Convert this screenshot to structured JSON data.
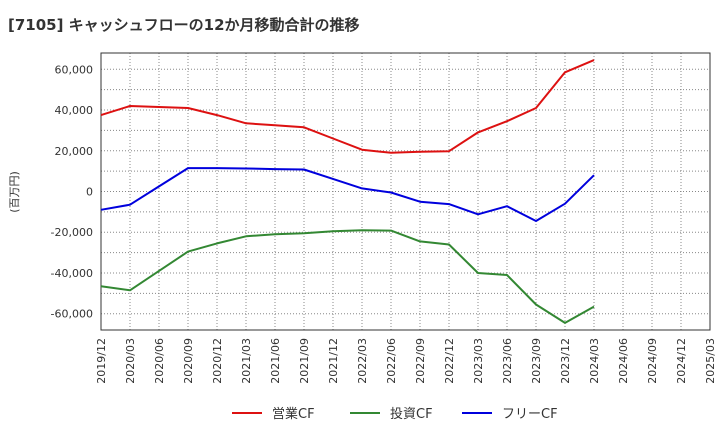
{
  "chart_data": {
    "type": "line",
    "title": "[7105]  キャッシュフローの12か月移動合計の推移",
    "xlabel": "",
    "ylabel": "(百万円)",
    "ylim": [
      -68000,
      68000
    ],
    "yticks": [
      60000,
      40000,
      20000,
      0,
      -20000,
      -40000,
      -60000
    ],
    "ytick_labels": [
      "60,000",
      "40,000",
      "20,000",
      "0",
      "-20,000",
      "-40,000",
      "-60,000"
    ],
    "x": [
      "2019/12",
      "2020/03",
      "2020/06",
      "2020/09",
      "2020/12",
      "2021/03",
      "2021/06",
      "2021/09",
      "2021/12",
      "2022/03",
      "2022/06",
      "2022/09",
      "2022/12",
      "2023/03",
      "2023/06",
      "2023/09",
      "2023/12",
      "2024/03",
      "2024/06",
      "2024/09",
      "2024/12",
      "2025/03"
    ],
    "grid": true,
    "legend_position": "bottom",
    "series": [
      {
        "name": "営業CF",
        "color": "#dd1111",
        "values": [
          37500,
          42000,
          41500,
          41000,
          37500,
          33500,
          32500,
          31500,
          26000,
          20500,
          19000,
          19500,
          19800,
          29000,
          34500,
          41000,
          58500,
          64500,
          null,
          null,
          null,
          null
        ]
      },
      {
        "name": "投資CF",
        "color": "#338833",
        "values": [
          -46500,
          -48500,
          -39000,
          -29500,
          -25500,
          -22000,
          -21000,
          -20500,
          -19500,
          -19000,
          -19200,
          -24500,
          -26000,
          -40000,
          -41000,
          -55500,
          -64500,
          -56500,
          null,
          null,
          null,
          null
        ]
      },
      {
        "name": "フリーCF",
        "color": "#0000dd",
        "values": [
          -9000,
          -6500,
          2500,
          11500,
          11500,
          11300,
          11000,
          10800,
          6200,
          1500,
          -500,
          -5000,
          -6200,
          -11200,
          -7200,
          -14500,
          -6000,
          8000,
          null,
          null,
          null,
          null
        ]
      }
    ]
  }
}
